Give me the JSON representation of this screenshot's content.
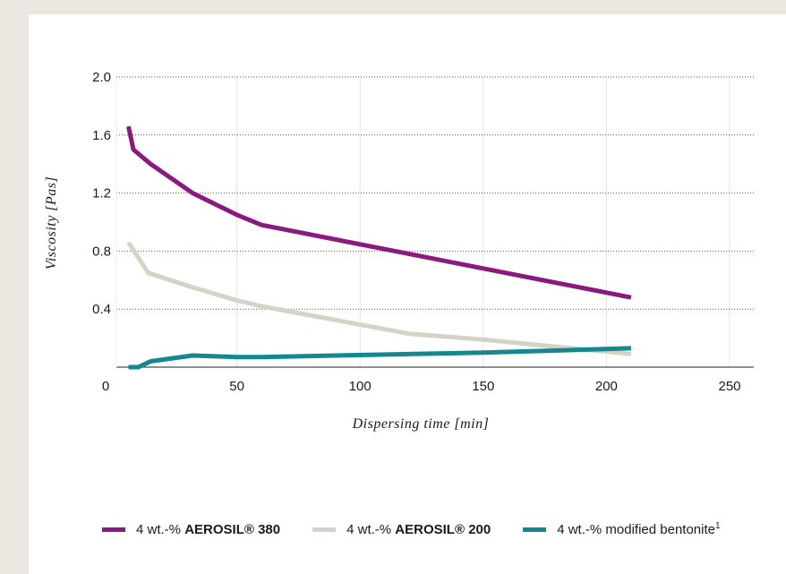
{
  "chart_data": {
    "type": "line",
    "xlabel": "Dispersing time [min]",
    "ylabel": "Viscosity [Pas]",
    "xlim": [
      0,
      250
    ],
    "ylim": [
      0,
      2.0
    ],
    "x_ticks": [
      "0",
      "50",
      "100",
      "150",
      "200",
      "250"
    ],
    "y_ticks": [
      "2.0",
      "1.6",
      "1.2",
      "0.8",
      "0.4"
    ],
    "grid": {
      "horizontal": "dotted",
      "vertical": true
    },
    "legend_position": "bottom",
    "series": [
      {
        "name": "4 wt.-% AEROSIL® 380",
        "name_prefix": "4 wt.-% ",
        "name_bold": "AEROSIL® 380",
        "name_sup": "",
        "color": "#8b1a7e",
        "x": [
          6,
          8,
          15,
          32,
          50,
          60,
          120,
          150,
          210
        ],
        "y": [
          1.66,
          1.5,
          1.4,
          1.2,
          1.05,
          0.98,
          0.78,
          0.68,
          0.48
        ]
      },
      {
        "name": "4 wt.-% AEROSIL® 200",
        "name_prefix": "4 wt.-% ",
        "name_bold": "AEROSIL® 200",
        "name_sup": "",
        "color": "#d6d2c8",
        "x": [
          6,
          14,
          32,
          50,
          60,
          120,
          150,
          210
        ],
        "y": [
          0.86,
          0.65,
          0.55,
          0.46,
          0.42,
          0.23,
          0.19,
          0.09
        ]
      },
      {
        "name": "4 wt.-% modified bentonite1",
        "name_prefix": "4 wt.-% modified bentonite",
        "name_bold": "",
        "name_sup": "1",
        "color": "#13898f",
        "x": [
          6,
          10,
          15,
          32,
          50,
          60,
          120,
          150,
          210
        ],
        "y": [
          0.0,
          0.0,
          0.04,
          0.08,
          0.07,
          0.07,
          0.09,
          0.1,
          0.13
        ]
      }
    ]
  }
}
